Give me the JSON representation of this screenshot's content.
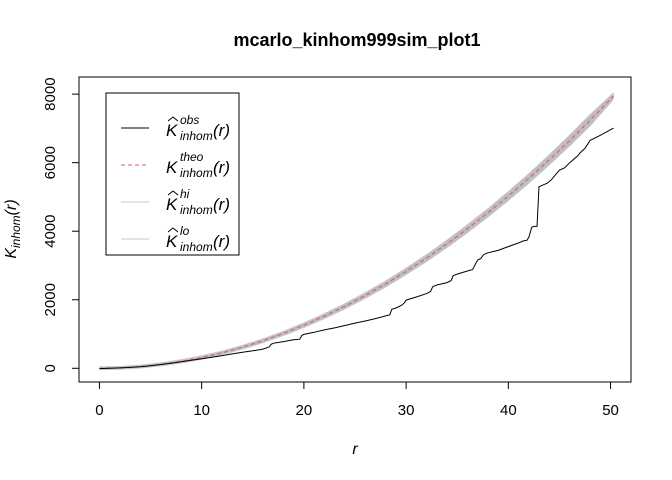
{
  "chart_data": {
    "type": "line",
    "title": "mcarlo_kinhom999sim_plot1",
    "xlabel": "r",
    "ylabel": {
      "base": "K",
      "sub": "inhom",
      "arg": "(r)"
    },
    "xlim": [
      -2,
      52
    ],
    "ylim": [
      -400,
      8500
    ],
    "x_ticks": [
      0,
      10,
      20,
      30,
      40,
      50
    ],
    "y_ticks": [
      0,
      2000,
      4000,
      6000,
      8000
    ],
    "grid": false,
    "legend_position": "top-left",
    "colors": {
      "obs": "#000000",
      "theo": "#df536b",
      "hi": "#c8c8c8",
      "lo": "#c8c8c8",
      "band": "#bebebe"
    },
    "series": [
      {
        "name": "obs",
        "legend": {
          "base": "K",
          "hat": true,
          "sup": "obs",
          "sub": "inhom",
          "arg": "(r)"
        },
        "style": "solid",
        "x": [
          0,
          1,
          2,
          3,
          4,
          5,
          6,
          7,
          8,
          9,
          10,
          11,
          12,
          13,
          14,
          15,
          16,
          16.6,
          16.8,
          17,
          18,
          19,
          19.6,
          19.8,
          20,
          21,
          22,
          23,
          24,
          25,
          26,
          27,
          28,
          28.4,
          28.6,
          29,
          29.5,
          29.8,
          30,
          31,
          32,
          32.4,
          32.6,
          33,
          34,
          34.4,
          34.6,
          35,
          36,
          36.5,
          36.8,
          37,
          37.3,
          37.6,
          38,
          39,
          40,
          41,
          41.5,
          41.8,
          42,
          42.3,
          42.5,
          42.8,
          43,
          43.4,
          43.8,
          44.2,
          45,
          45.5,
          46,
          46.8,
          47,
          47.5,
          48,
          49,
          50.3
        ],
        "values": [
          -10,
          0,
          10,
          25,
          45,
          75,
          110,
          150,
          190,
          235,
          280,
          325,
          370,
          420,
          470,
          510,
          560,
          620,
          700,
          730,
          780,
          830,
          850,
          960,
          990,
          1050,
          1120,
          1180,
          1250,
          1320,
          1380,
          1450,
          1530,
          1560,
          1720,
          1760,
          1830,
          1900,
          1990,
          2080,
          2180,
          2240,
          2380,
          2430,
          2500,
          2560,
          2700,
          2750,
          2840,
          2880,
          3050,
          3160,
          3200,
          3320,
          3370,
          3440,
          3550,
          3660,
          3720,
          3730,
          3820,
          4120,
          4140,
          4140,
          5300,
          5350,
          5400,
          5500,
          5780,
          5850,
          6000,
          6200,
          6280,
          6420,
          6650,
          6800,
          7010
        ]
      },
      {
        "name": "theo",
        "legend": {
          "base": "K",
          "hat": false,
          "sup": "theo",
          "sub": "inhom",
          "arg": "(r)"
        },
        "style": "dashed",
        "x": [
          0,
          2,
          4,
          6,
          8,
          10,
          12,
          14,
          16,
          18,
          20,
          22,
          24,
          26,
          28,
          30,
          32,
          34,
          36,
          38,
          40,
          42,
          44,
          46,
          48,
          50.3
        ],
        "values": [
          0,
          12.6,
          50.3,
          113.1,
          201.1,
          314.2,
          452.4,
          615.8,
          804.2,
          1017.9,
          1256.6,
          1520.5,
          1809.6,
          2123.7,
          2463,
          2827.4,
          3217,
          3631.7,
          4071.5,
          4536.5,
          5026.5,
          5541.8,
          6082.1,
          6647.6,
          7238.2,
          7948.4
        ]
      },
      {
        "name": "hi",
        "legend": {
          "base": "K",
          "hat": true,
          "sup": "hi",
          "sub": "inhom",
          "arg": "(r)"
        },
        "style": "solid",
        "x": [
          0,
          2,
          4,
          6,
          8,
          10,
          12,
          14,
          16,
          18,
          20,
          22,
          24,
          26,
          28,
          30,
          32,
          34,
          36,
          38,
          40,
          42,
          44,
          46,
          48,
          50.3
        ],
        "values": [
          40,
          53,
          92,
          157,
          247,
          362,
          503,
          670,
          862,
          1080,
          1323,
          1592,
          1886,
          2206,
          2551,
          2922,
          3318,
          3739,
          4186,
          4658,
          5156,
          5679,
          6228,
          6802,
          7402,
          8043
        ]
      },
      {
        "name": "lo",
        "legend": {
          "base": "K",
          "hat": true,
          "sup": "lo",
          "sub": "inhom",
          "arg": "(r)"
        },
        "style": "solid",
        "x": [
          0,
          2,
          4,
          6,
          8,
          10,
          12,
          14,
          16,
          18,
          20,
          22,
          24,
          26,
          28,
          30,
          32,
          34,
          36,
          38,
          40,
          42,
          44,
          46,
          48,
          50.3
        ],
        "values": [
          -40,
          -28,
          9,
          69,
          155,
          266,
          402,
          562,
          746,
          956,
          1190,
          1449,
          1733,
          2041,
          2375,
          2733,
          3116,
          3524,
          3957,
          4415,
          4897,
          5404,
          5936,
          6493,
          7074,
          7854
        ]
      }
    ]
  }
}
